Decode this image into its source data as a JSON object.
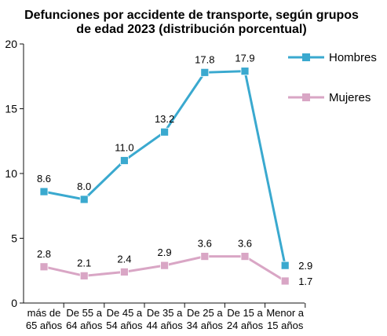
{
  "chart_data": {
    "type": "line",
    "title": [
      "Defunciones por accidente de transporte, según grupos",
      "de edad 2023 (distribución porcentual)"
    ],
    "xlabel": "",
    "ylabel": "",
    "ylim": [
      0,
      20
    ],
    "yticks": [
      0,
      5,
      10,
      15,
      20
    ],
    "categories": [
      [
        "más de",
        "65 años"
      ],
      [
        "De 55 a",
        "64 años"
      ],
      [
        "De 45 a",
        "54 años"
      ],
      [
        "De 35 a",
        "44 años"
      ],
      [
        "De 25 a",
        "34 años"
      ],
      [
        "De 15 a",
        "24 años"
      ],
      [
        "Menor a",
        "15 años"
      ]
    ],
    "series": [
      {
        "name": "Hombres",
        "color": "#3aa9cf",
        "values": [
          8.6,
          8.0,
          11.0,
          13.2,
          17.8,
          17.9,
          2.9
        ],
        "labels": [
          "8.6",
          "8.0",
          "11.0",
          "13.2",
          "17.8",
          "17.9",
          "2.9"
        ]
      },
      {
        "name": "Mujeres",
        "color": "#d9a6c5",
        "values": [
          2.8,
          2.1,
          2.4,
          2.9,
          3.6,
          3.6,
          1.7
        ],
        "labels": [
          "2.8",
          "2.1",
          "2.4",
          "2.9",
          "3.6",
          "3.6",
          "1.7"
        ]
      }
    ],
    "legend_position": "right",
    "grid": false
  }
}
